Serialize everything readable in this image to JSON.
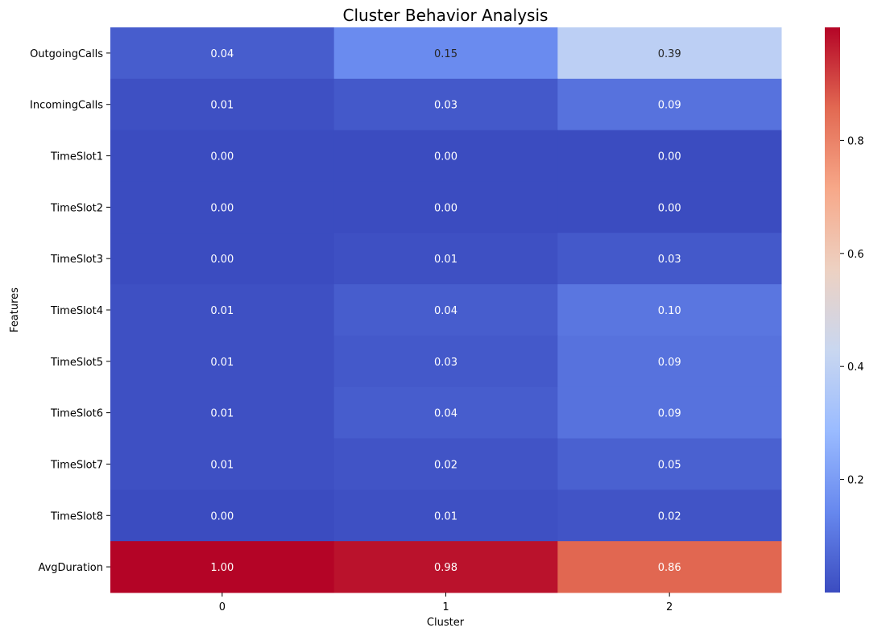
{
  "chart_data": {
    "type": "heatmap",
    "title": "Cluster Behavior Analysis",
    "xlabel": "Cluster",
    "ylabel": "Features",
    "x_categories": [
      "0",
      "1",
      "2"
    ],
    "y_categories": [
      "OutgoingCalls",
      "IncomingCalls",
      "TimeSlot1",
      "TimeSlot2",
      "TimeSlot3",
      "TimeSlot4",
      "TimeSlot5",
      "TimeSlot6",
      "TimeSlot7",
      "TimeSlot8",
      "AvgDuration"
    ],
    "values": [
      [
        0.04,
        0.15,
        0.39
      ],
      [
        0.01,
        0.03,
        0.09
      ],
      [
        0.0,
        0.0,
        0.0
      ],
      [
        0.0,
        0.0,
        0.0
      ],
      [
        0.0,
        0.01,
        0.03
      ],
      [
        0.01,
        0.04,
        0.1
      ],
      [
        0.01,
        0.03,
        0.09
      ],
      [
        0.01,
        0.04,
        0.09
      ],
      [
        0.01,
        0.02,
        0.05
      ],
      [
        0.0,
        0.01,
        0.02
      ],
      [
        1.0,
        0.98,
        0.86
      ]
    ],
    "value_labels": [
      [
        "0.04",
        "0.15",
        "0.39"
      ],
      [
        "0.01",
        "0.03",
        "0.09"
      ],
      [
        "0.00",
        "0.00",
        "0.00"
      ],
      [
        "0.00",
        "0.00",
        "0.00"
      ],
      [
        "0.00",
        "0.01",
        "0.03"
      ],
      [
        "0.01",
        "0.04",
        "0.10"
      ],
      [
        "0.01",
        "0.03",
        "0.09"
      ],
      [
        "0.01",
        "0.04",
        "0.09"
      ],
      [
        "0.01",
        "0.02",
        "0.05"
      ],
      [
        "0.00",
        "0.01",
        "0.02"
      ],
      [
        "1.00",
        "0.98",
        "0.86"
      ]
    ],
    "colormap": "coolwarm",
    "colormap_stops": [
      "#3b4cc0",
      "#6788ee",
      "#9abbff",
      "#c9d7f0",
      "#edd1c2",
      "#f7a889",
      "#e26952",
      "#b40426"
    ],
    "color_range": [
      0.0,
      1.0
    ],
    "colorbar_ticks": [
      "0.2",
      "0.4",
      "0.6",
      "0.8"
    ],
    "colorbar_tick_values": [
      0.2,
      0.4,
      0.6,
      0.8
    ]
  }
}
